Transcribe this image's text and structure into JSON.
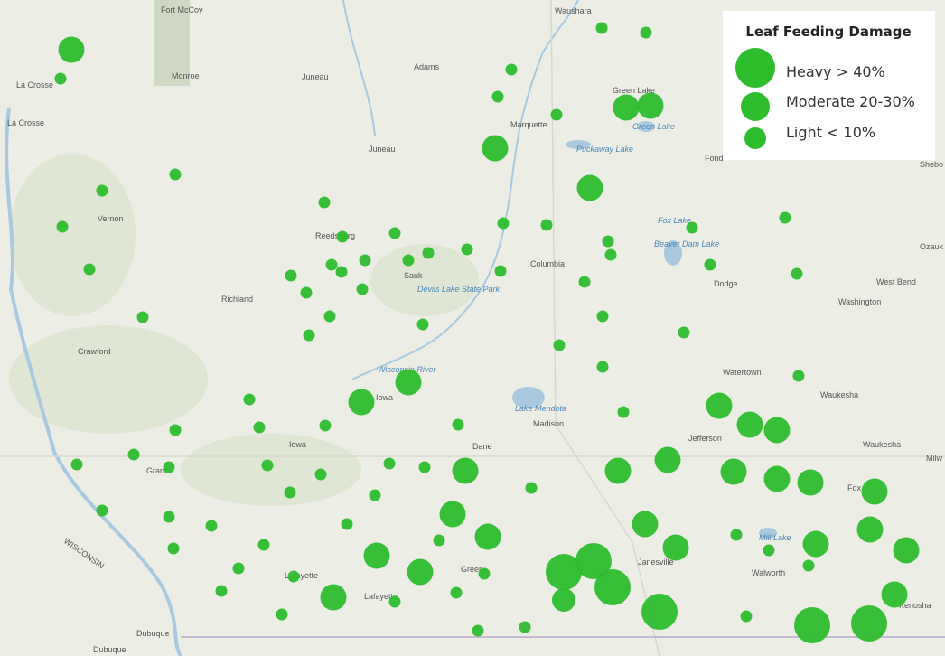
{
  "legend": {
    "title": "Leaf Feeding Damage",
    "items": [
      "Heavy > 40%",
      "Moderate 20-30%",
      "Light < 10%"
    ]
  },
  "places": [
    "La Crosse",
    "La Crosse",
    "Fort McCoy",
    "Monroe",
    "Juneau",
    "Adams",
    "Waushara",
    "Green Lake",
    "Green Lake",
    "Marquette",
    "Puckaway Lake",
    "Juneau",
    "Vernon",
    "Reedsburg",
    "Sauk",
    "Devils Lake State Park",
    "Columbia",
    "Fox Lake",
    "Beaver Dam Lake",
    "Dodge",
    "Richland",
    "Crawford",
    "Iowa",
    "Lake Mendota",
    "Madison",
    "Dane",
    "Jefferson",
    "Watertown",
    "Waukesha",
    "Waukesha",
    "Washington",
    "West Bend",
    "Iowa",
    "Grant",
    "Lafayette",
    "Lafayette",
    "Green",
    "Janesville",
    "Mill Lake",
    "Walworth",
    "Kenosha",
    "Dubuque",
    "Dubuque",
    "WISCONSIN",
    "Wisconsin River",
    "Fond",
    "Ozauk",
    "Shebo",
    "Fox",
    "Milw"
  ]
}
